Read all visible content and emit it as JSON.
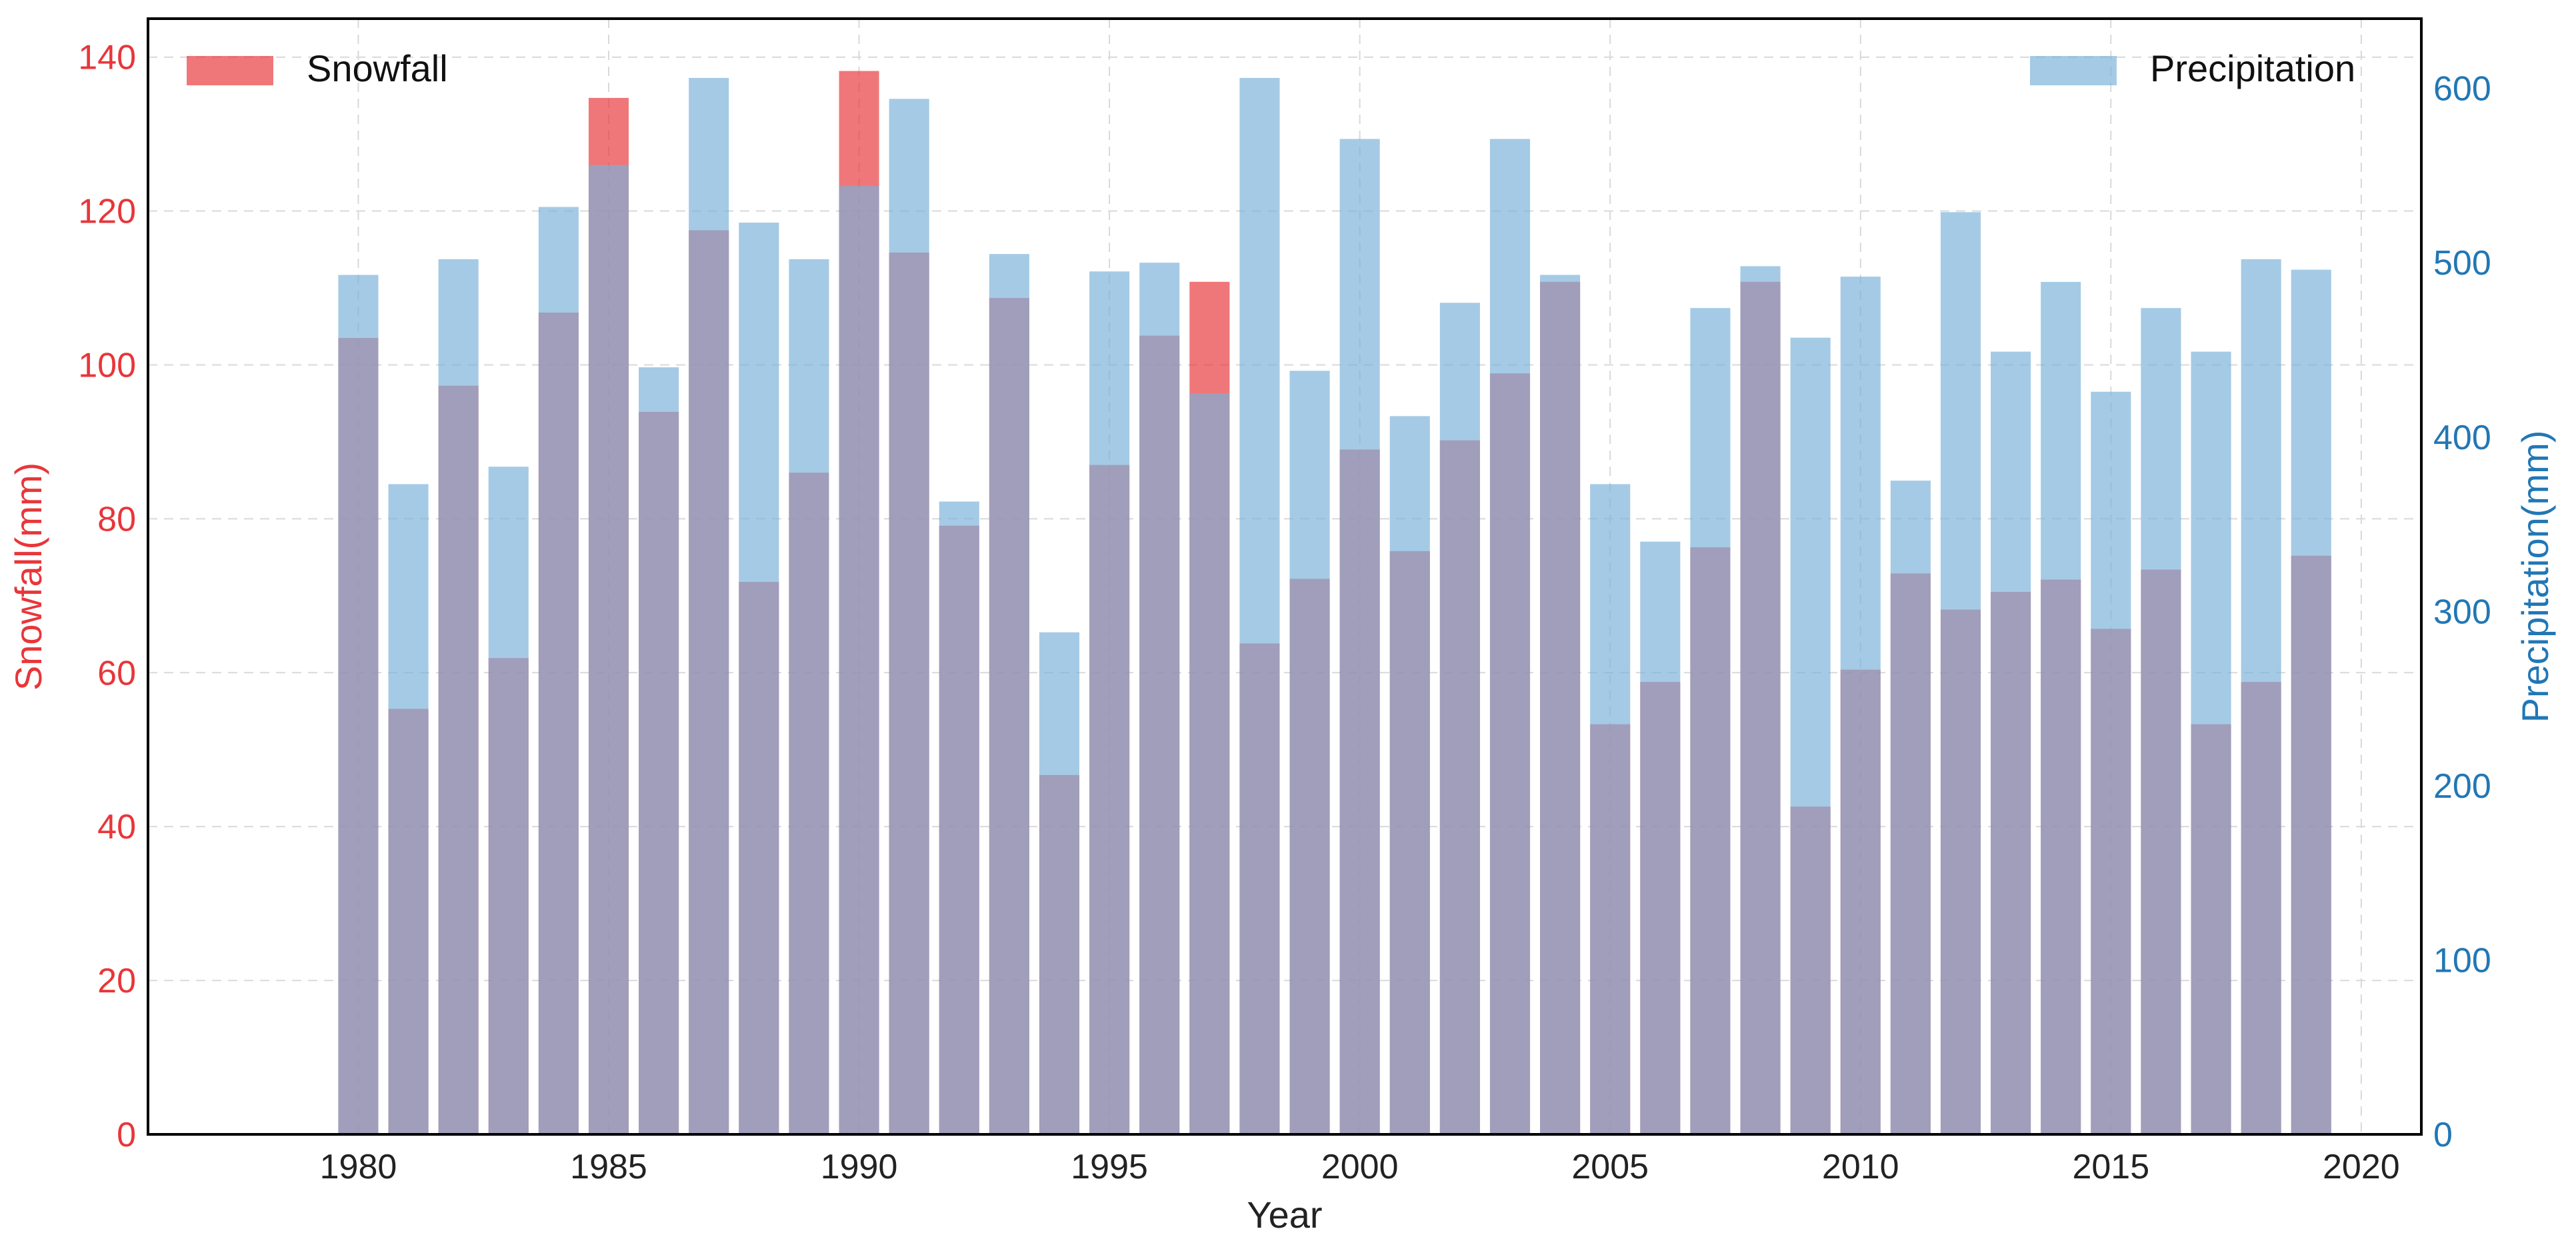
{
  "chart_data": {
    "type": "bar",
    "xlabel": "Year",
    "x_ticks": [
      "1980",
      "1985",
      "1990",
      "1995",
      "2000",
      "2005",
      "2010",
      "2015",
      "2020"
    ],
    "xlim": [
      1975.8,
      2021.2
    ],
    "grid": true,
    "y_left": {
      "label": "Snowfall(mm)",
      "ylim": [
        0,
        145
      ],
      "ticks": [
        "0",
        "20",
        "40",
        "60",
        "80",
        "100",
        "120",
        "140"
      ],
      "color": "#e8363a"
    },
    "y_right": {
      "label": "Precipitation(mm)",
      "ylim": [
        0,
        640
      ],
      "ticks": [
        "0",
        "100",
        "200",
        "300",
        "400",
        "500",
        "600"
      ],
      "color": "#2277b5"
    },
    "x": [
      1980,
      1981,
      1982,
      1983,
      1984,
      1985,
      1986,
      1987,
      1988,
      1989,
      1990,
      1991,
      1992,
      1993,
      1994,
      1995,
      1996,
      1997,
      1998,
      1999,
      2000,
      2001,
      2002,
      2003,
      2004,
      2005,
      2006,
      2007,
      2008,
      2009,
      2010,
      2011,
      2012,
      2013,
      2014,
      2015,
      2016,
      2017,
      2018,
      2019
    ],
    "series": [
      {
        "name": "Snowfall",
        "axis": "left",
        "color": "#e8363a",
        "values": [
          103.5,
          55.3,
          97.3,
          61.9,
          106.8,
          134.7,
          93.9,
          117.5,
          71.8,
          86.0,
          138.2,
          114.6,
          79.1,
          108.7,
          46.7,
          87.0,
          103.8,
          110.8,
          63.8,
          72.2,
          89.0,
          75.8,
          90.2,
          98.9,
          110.8,
          53.3,
          58.8,
          76.3,
          110.8,
          42.6,
          60.4,
          72.9,
          68.2,
          70.5,
          72.1,
          65.7,
          73.4,
          53.3,
          58.8,
          75.2
        ]
      },
      {
        "name": "Precipitation",
        "axis": "right",
        "color": "#7ab1d8",
        "values": [
          493,
          373,
          502,
          383,
          532,
          556,
          440,
          606,
          523,
          502,
          544,
          594,
          363,
          505,
          288,
          495,
          500,
          425,
          606,
          438,
          571,
          412,
          477,
          571,
          493,
          373,
          340,
          474,
          498,
          457,
          492,
          375,
          529,
          449,
          489,
          426,
          474,
          449,
          502,
          496
        ]
      }
    ]
  }
}
